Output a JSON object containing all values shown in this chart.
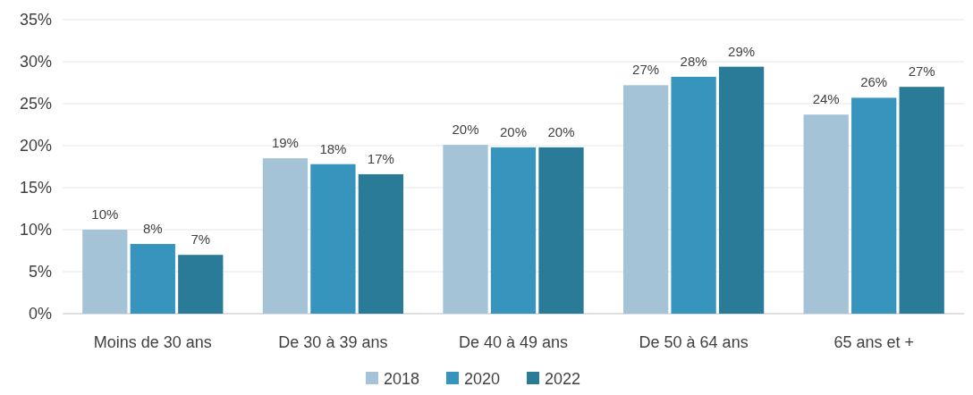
{
  "chart_data": {
    "type": "bar",
    "categories": [
      "Moins de 30 ans",
      "De 30 à 39 ans",
      "De 40 à 49 ans",
      "De 50 à 64 ans",
      "65 ans et +"
    ],
    "series": [
      {
        "name": "2018",
        "color": "#a5c3d6",
        "values": [
          10.0,
          18.5,
          20.1,
          27.2,
          23.7
        ],
        "value_labels": [
          "10%",
          "19%",
          "20%",
          "27%",
          "24%"
        ]
      },
      {
        "name": "2020",
        "color": "#3795bd",
        "values": [
          8.3,
          17.8,
          19.8,
          28.2,
          25.7
        ],
        "value_labels": [
          "8%",
          "18%",
          "20%",
          "28%",
          "26%"
        ]
      },
      {
        "name": "2022",
        "color": "#2a7b98",
        "values": [
          7.0,
          16.6,
          19.8,
          29.4,
          27.0
        ],
        "value_labels": [
          "7%",
          "17%",
          "20%",
          "29%",
          "27%"
        ]
      }
    ],
    "ylim": [
      0,
      35
    ],
    "yticks": [
      {
        "value": 0,
        "label": "0%"
      },
      {
        "value": 5,
        "label": "5%"
      },
      {
        "value": 10,
        "label": "10%"
      },
      {
        "value": 15,
        "label": "15%"
      },
      {
        "value": 20,
        "label": "20%"
      },
      {
        "value": 25,
        "label": "25%"
      },
      {
        "value": 30,
        "label": "30%"
      },
      {
        "value": 35,
        "label": "35%"
      }
    ],
    "grid": "y",
    "legend": "bottom"
  }
}
